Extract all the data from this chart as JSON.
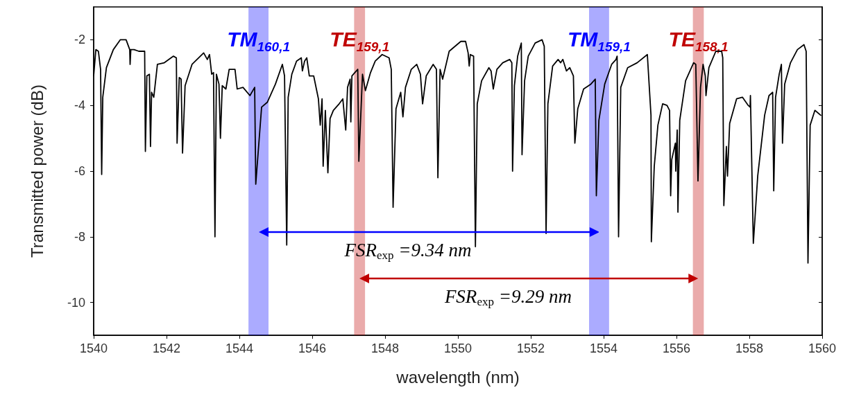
{
  "chart_data": {
    "type": "line",
    "xlabel": "wavelength (nm)",
    "ylabel": "Transmitted power (dB)",
    "xlim": [
      1540,
      1560
    ],
    "ylim": [
      -11,
      -1
    ],
    "xticks": [
      1540,
      1542,
      1544,
      1546,
      1548,
      1550,
      1552,
      1554,
      1556,
      1558,
      1560
    ],
    "yticks": [
      -10,
      -8,
      -6,
      -4,
      -2
    ],
    "grid": false,
    "series": [
      {
        "color": "#000000",
        "x": [
          1540.0,
          1540.06,
          1540.13,
          1540.19,
          1540.22,
          1540.25,
          1540.35,
          1540.54,
          1540.73,
          1540.89,
          1540.99,
          1541.0,
          1541.02,
          1541.11,
          1541.24,
          1541.4,
          1541.42,
          1541.46,
          1541.53,
          1541.56,
          1541.59,
          1541.65,
          1541.75,
          1541.94,
          1542.19,
          1542.27,
          1542.29,
          1542.35,
          1542.4,
          1542.44,
          1542.51,
          1542.7,
          1543.02,
          1543.12,
          1543.18,
          1543.24,
          1543.29,
          1543.33,
          1543.37,
          1543.44,
          1543.48,
          1543.53,
          1543.63,
          1543.72,
          1543.88,
          1543.94,
          1544.1,
          1544.29,
          1544.42,
          1544.45,
          1544.61,
          1544.77,
          1544.99,
          1545.18,
          1545.24,
          1545.3,
          1545.34,
          1545.44,
          1545.57,
          1545.7,
          1545.73,
          1545.79,
          1545.85,
          1545.92,
          1546.04,
          1546.17,
          1546.22,
          1546.27,
          1546.3,
          1546.36,
          1546.43,
          1546.49,
          1546.58,
          1546.74,
          1546.84,
          1546.92,
          1546.97,
          1547.04,
          1547.06,
          1547.09,
          1547.25,
          1547.28,
          1547.38,
          1547.46,
          1547.6,
          1547.73,
          1547.92,
          1548.11,
          1548.17,
          1548.22,
          1548.3,
          1548.43,
          1548.49,
          1548.56,
          1548.72,
          1548.87,
          1548.97,
          1549.03,
          1549.13,
          1549.32,
          1549.41,
          1549.45,
          1549.51,
          1549.58,
          1549.76,
          1550.08,
          1550.21,
          1550.28,
          1550.31,
          1550.34,
          1550.43,
          1550.48,
          1550.53,
          1550.65,
          1550.85,
          1550.91,
          1550.97,
          1551.07,
          1551.23,
          1551.42,
          1551.48,
          1551.5,
          1551.55,
          1551.64,
          1551.74,
          1551.76,
          1551.83,
          1551.93,
          1552.12,
          1552.31,
          1552.37,
          1552.42,
          1552.47,
          1552.6,
          1552.75,
          1552.82,
          1552.88,
          1552.98,
          1553.07,
          1553.17,
          1553.21,
          1553.29,
          1553.45,
          1553.65,
          1553.77,
          1553.8,
          1553.87,
          1554.03,
          1554.22,
          1554.34,
          1554.37,
          1554.41,
          1554.47,
          1554.66,
          1554.92,
          1555.2,
          1555.3,
          1555.31,
          1555.39,
          1555.49,
          1555.62,
          1555.74,
          1555.81,
          1555.84,
          1555.87,
          1555.97,
          1555.98,
          1556.02,
          1556.04,
          1556.09,
          1556.25,
          1556.47,
          1556.53,
          1556.59,
          1556.66,
          1556.73,
          1556.79,
          1556.81,
          1556.89,
          1557.08,
          1557.24,
          1557.27,
          1557.3,
          1557.37,
          1557.4,
          1557.46,
          1557.65,
          1557.81,
          1557.97,
          1558.02,
          1558.03,
          1558.11,
          1558.23,
          1558.42,
          1558.54,
          1558.64,
          1558.67,
          1558.72,
          1558.82,
          1558.88,
          1558.91,
          1558.97,
          1559.13,
          1559.32,
          1559.5,
          1559.56,
          1559.61,
          1559.67,
          1559.8,
          1559.96
        ],
        "values": [
          -3.1,
          -2.3,
          -2.35,
          -2.9,
          -6.1,
          -3.75,
          -2.85,
          -2.3,
          -2.0,
          -2.0,
          -2.3,
          -2.75,
          -2.3,
          -2.3,
          -2.35,
          -2.35,
          -5.4,
          -3.1,
          -3.05,
          -5.25,
          -3.6,
          -3.75,
          -2.75,
          -2.7,
          -2.5,
          -2.55,
          -5.15,
          -3.15,
          -3.2,
          -5.45,
          -3.4,
          -2.75,
          -2.4,
          -2.6,
          -2.45,
          -3.05,
          -3.0,
          -8.0,
          -3.05,
          -3.35,
          -5.0,
          -3.4,
          -3.5,
          -2.9,
          -2.9,
          -3.5,
          -3.45,
          -3.7,
          -3.45,
          -6.4,
          -4.05,
          -3.9,
          -3.35,
          -2.75,
          -3.1,
          -8.25,
          -3.75,
          -3.05,
          -2.65,
          -2.55,
          -2.95,
          -2.65,
          -2.55,
          -3.1,
          -3.1,
          -3.8,
          -4.6,
          -3.8,
          -5.85,
          -4.15,
          -6.05,
          -4.4,
          -4.15,
          -3.95,
          -3.8,
          -4.75,
          -3.45,
          -3.2,
          -4.5,
          -3.1,
          -2.9,
          -5.7,
          -3.05,
          -3.55,
          -3.0,
          -2.65,
          -2.45,
          -2.55,
          -2.9,
          -7.1,
          -4.1,
          -3.6,
          -4.35,
          -3.45,
          -2.9,
          -2.75,
          -3.05,
          -3.95,
          -3.1,
          -2.75,
          -2.9,
          -6.2,
          -2.9,
          -3.2,
          -2.35,
          -2.05,
          -2.05,
          -2.4,
          -2.8,
          -2.45,
          -2.5,
          -8.3,
          -3.95,
          -3.25,
          -2.85,
          -2.95,
          -3.5,
          -2.9,
          -2.7,
          -2.6,
          -2.7,
          -6.0,
          -3.4,
          -2.5,
          -2.1,
          -5.5,
          -3.25,
          -2.5,
          -2.1,
          -2.0,
          -2.2,
          -7.9,
          -3.95,
          -2.8,
          -2.6,
          -2.7,
          -2.6,
          -2.95,
          -2.85,
          -3.1,
          -5.15,
          -4.1,
          -3.5,
          -3.35,
          -3.2,
          -6.75,
          -4.45,
          -3.35,
          -2.75,
          -2.6,
          -2.5,
          -8.0,
          -3.45,
          -2.85,
          -2.7,
          -2.45,
          -4.3,
          -8.15,
          -5.85,
          -4.6,
          -3.95,
          -4.0,
          -4.15,
          -6.75,
          -5.65,
          -5.15,
          -6.0,
          -4.75,
          -7.25,
          -4.45,
          -3.25,
          -2.7,
          -2.75,
          -6.3,
          -3.45,
          -2.75,
          -3.1,
          -3.7,
          -2.85,
          -2.35,
          -2.35,
          -2.55,
          -7.05,
          -5.25,
          -6.15,
          -4.55,
          -3.8,
          -3.75,
          -4.0,
          -4.05,
          -3.7,
          -8.2,
          -6.15,
          -4.3,
          -3.7,
          -3.6,
          -6.6,
          -3.75,
          -3.05,
          -2.75,
          -5.15,
          -3.35,
          -2.7,
          -2.3,
          -2.15,
          -2.35,
          -8.8,
          -4.6,
          -4.15,
          -4.3
        ]
      }
    ],
    "bands": [
      {
        "axis": "x",
        "from": 1544.25,
        "to": 1544.8,
        "label": "TM$_{160,1}$",
        "color": "#0000ff"
      },
      {
        "axis": "x",
        "from": 1547.15,
        "to": 1547.45,
        "label": "TE$_{159,1}$",
        "color": "#c00000"
      },
      {
        "axis": "x",
        "from": 1553.6,
        "to": 1554.15,
        "label": "TM$_{159,1}$",
        "color": "#0000ff"
      },
      {
        "axis": "x",
        "from": 1556.45,
        "to": 1556.75,
        "label": "TE$_{158,1}$",
        "color": "#c00000"
      }
    ],
    "annotations": [
      "FSR$_{exp}$ =9.34 nm",
      "FSR$_{exp}$ =9.29 nm"
    ]
  }
}
